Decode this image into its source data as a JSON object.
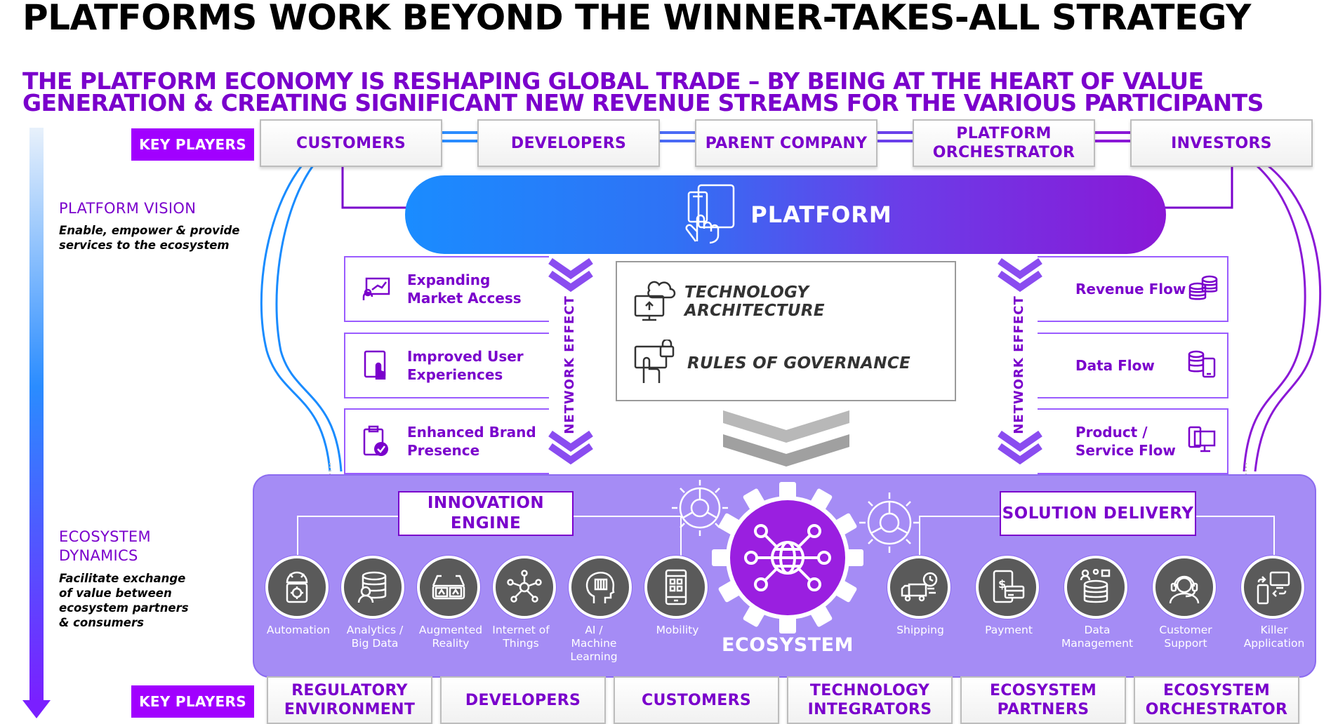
{
  "title": "PLATFORMS WORK BEYOND THE WINNER-TAKES-ALL STRATEGY",
  "subtitle": "THE PLATFORM ECONOMY IS RESHAPING GLOBAL TRADE – BY BEING AT THE HEART OF VALUE GENERATION & CREATING SIGNIFICANT NEW REVENUE STREAMS FOR THE VARIOUS PARTICIPANTS",
  "colors": {
    "accent_purple": "#a100ff",
    "dark_purple": "#7a00cc",
    "blue": "#1a8cff",
    "panel_purple": "#a58cf5"
  },
  "key_players_label": "KEY PLAYERS",
  "top_players": [
    "CUSTOMERS",
    "DEVELOPERS",
    "PARENT COMPANY",
    "PLATFORM ORCHESTRATOR",
    "INVESTORS"
  ],
  "bottom_players": [
    "REGULATORY ENVIRONMENT",
    "DEVELOPERS",
    "CUSTOMERS",
    "TECHNOLOGY INTEGRATORS",
    "ECOSYSTEM PARTNERS",
    "ECOSYSTEM ORCHESTRATOR"
  ],
  "platform_vision": {
    "heading": "PLATFORM VISION",
    "description": "Enable, empower & provide services to the ecosystem"
  },
  "ecosystem_dynamics": {
    "heading": "ECOSYSTEM DYNAMICS",
    "description": "Facilitate exchange of value between ecosystem partners & consumers"
  },
  "platform": {
    "label": "PLATFORM",
    "icon": "touch-devices-icon"
  },
  "network_effect": "NETWORK EFFECT",
  "left_features": [
    {
      "label": "Expanding Market Access",
      "icon": "presentation-icon"
    },
    {
      "label": "Improved User Experiences",
      "icon": "touch-tablet-icon"
    },
    {
      "label": "Enhanced Brand Presence",
      "icon": "clipboard-check-icon"
    }
  ],
  "right_features": [
    {
      "label": "Revenue Flow",
      "icon": "coins-icon"
    },
    {
      "label": "Data Flow",
      "icon": "database-mobile-icon"
    },
    {
      "label": "Product / Service Flow",
      "icon": "devices-icon"
    }
  ],
  "center": {
    "tech_architecture": "TECHNOLOGY ARCHITECTURE",
    "rules_of_governance": "RULES OF GOVERNANCE"
  },
  "innovation_engine": "INNOVATION ENGINE",
  "solution_delivery": "SOLUTION DELIVERY",
  "ecosystem_label": "ECOSYSTEM",
  "left_capabilities": [
    {
      "label": "Automation",
      "icon": "android-gear-icon"
    },
    {
      "label": "Analytics / Big Data",
      "icon": "database-user-icon"
    },
    {
      "label": "Augmented Reality",
      "icon": "ar-glasses-icon"
    },
    {
      "label": "Internet of Things",
      "icon": "network-nodes-icon"
    },
    {
      "label": "AI / Machine Learning",
      "icon": "ai-head-icon"
    },
    {
      "label": "Mobility",
      "icon": "mobile-phone-icon"
    }
  ],
  "right_capabilities": [
    {
      "label": "Shipping",
      "icon": "truck-icon"
    },
    {
      "label": "Payment",
      "icon": "mobile-payment-icon"
    },
    {
      "label": "Data Management",
      "icon": "data-stack-icon"
    },
    {
      "label": "Customer Support",
      "icon": "headset-icon"
    },
    {
      "label": "Killer Application",
      "icon": "app-devices-icon"
    }
  ]
}
